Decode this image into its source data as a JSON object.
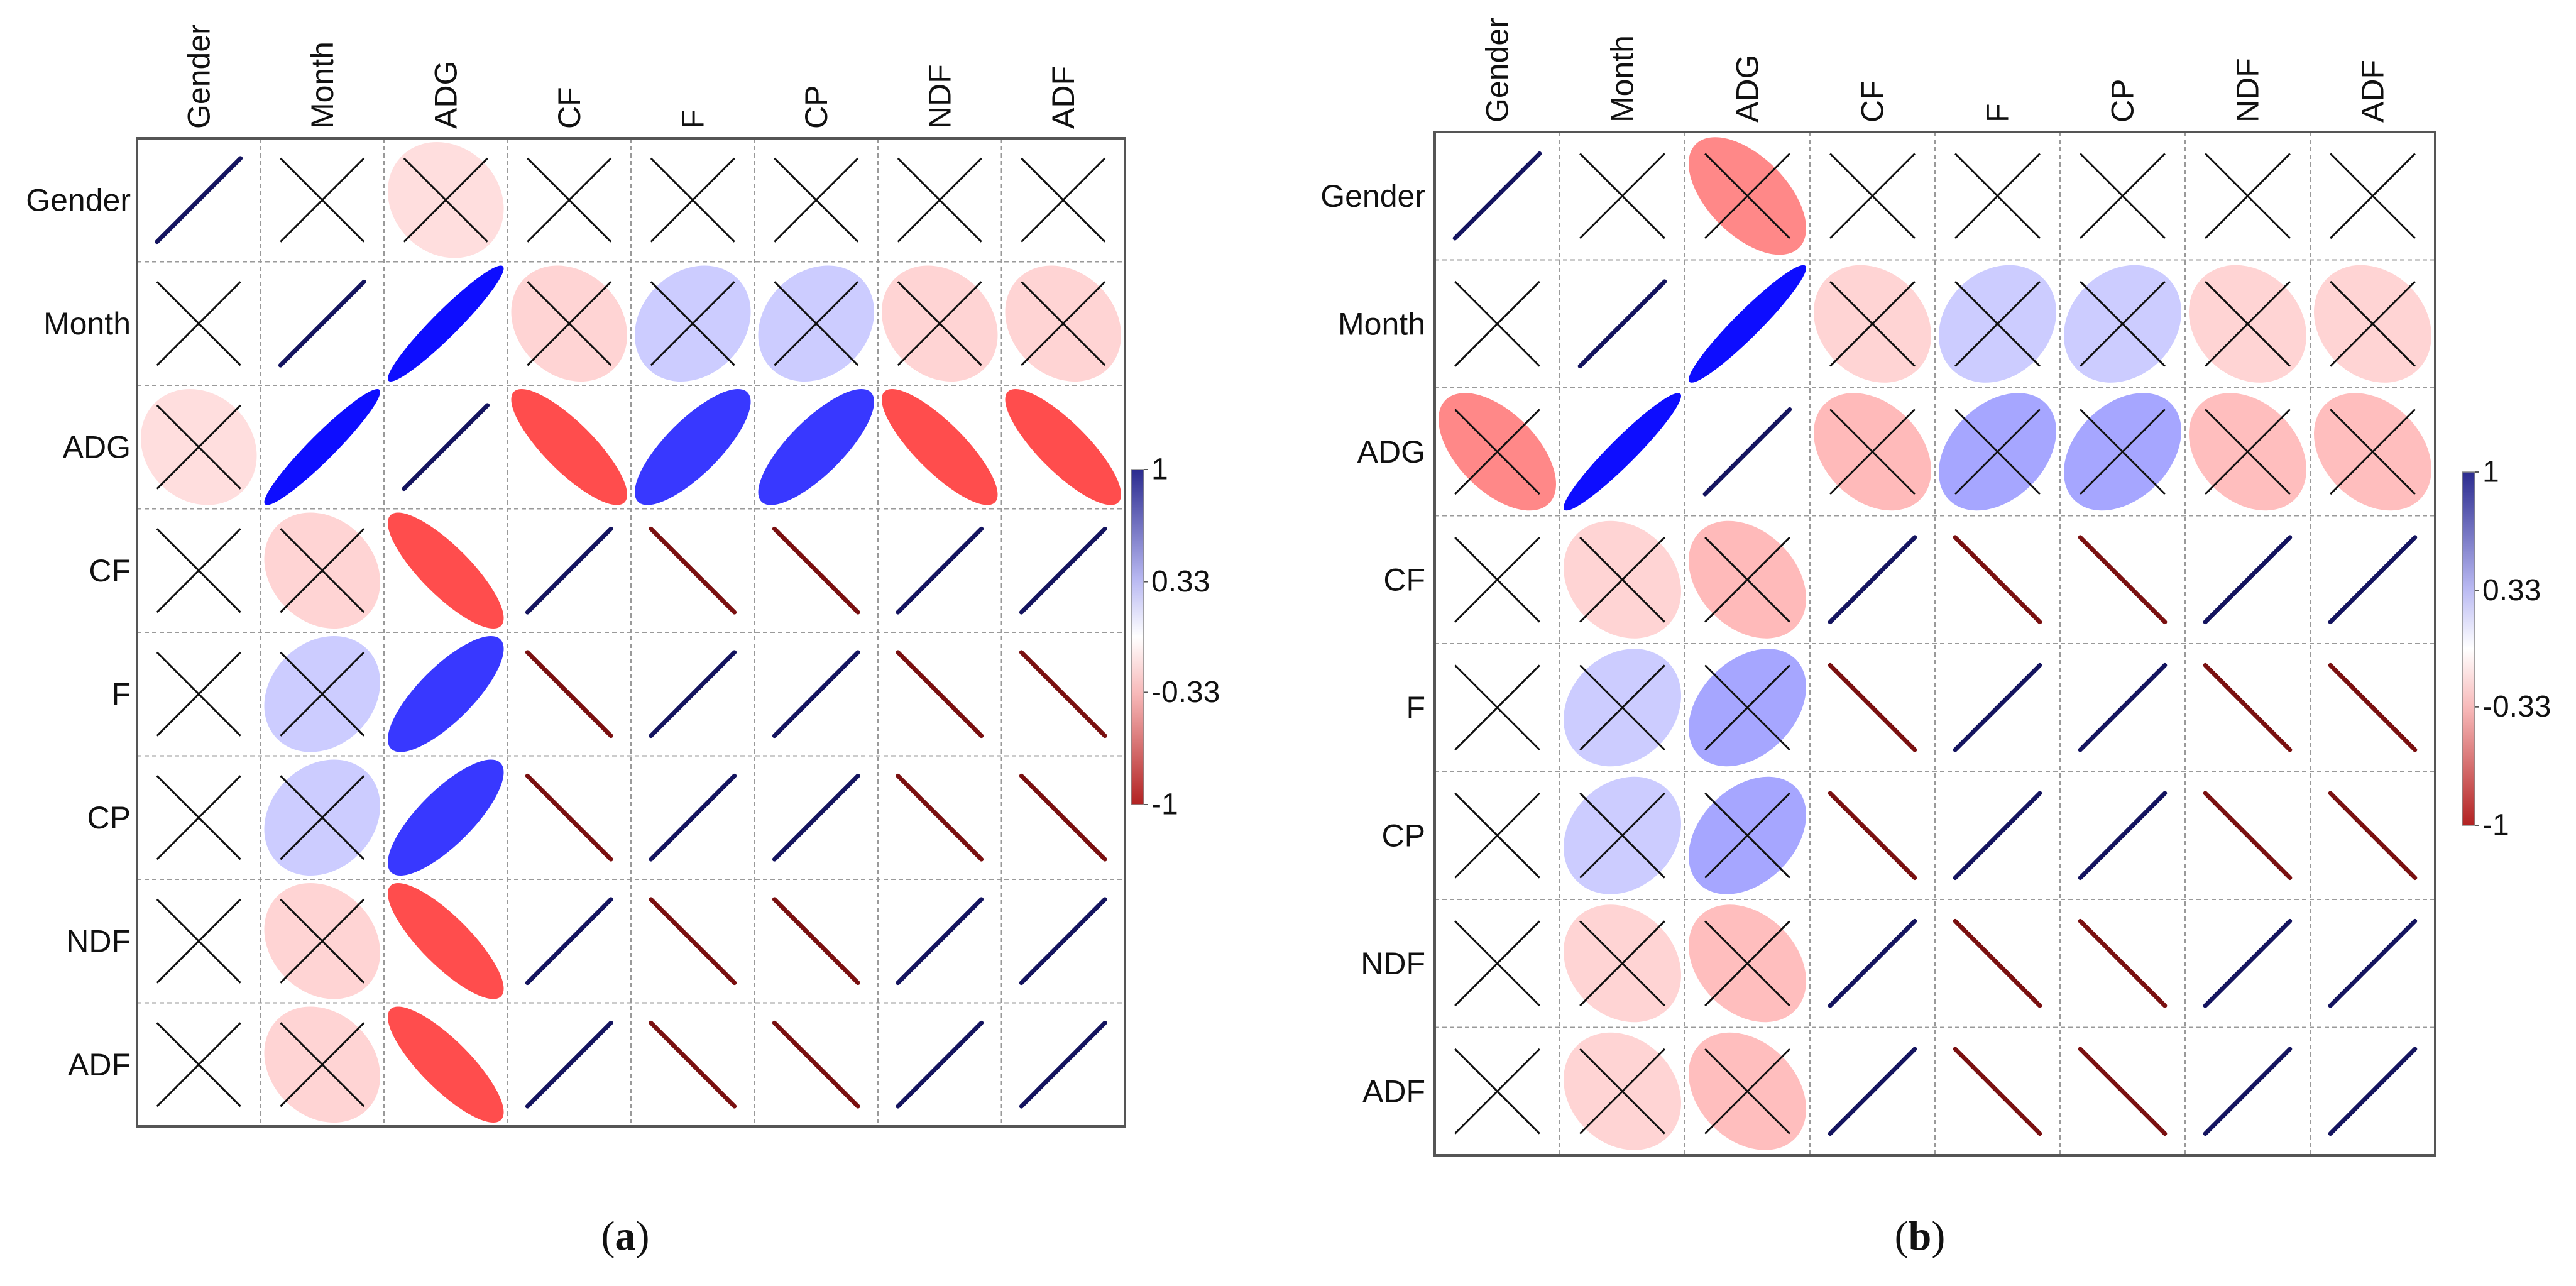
{
  "chart_data": [
    {
      "type": "heatmap",
      "subtype": "correlation-ellipse",
      "variables": [
        "Gender",
        "Month",
        "ADG",
        "CF",
        "F",
        "CP",
        "NDF",
        "ADF"
      ],
      "matrix": [
        [
          1,
          0,
          -0.15,
          0,
          0,
          0,
          0,
          0
        ],
        [
          0,
          1,
          0.95,
          -0.2,
          0.2,
          0.2,
          -0.2,
          -0.2
        ],
        [
          -0.15,
          0.95,
          1,
          -0.82,
          0.78,
          0.78,
          -0.82,
          -0.82
        ],
        [
          0,
          -0.2,
          -0.82,
          1,
          -1,
          -1,
          1,
          1
        ],
        [
          0,
          0.2,
          0.78,
          -1,
          1,
          1,
          -1,
          -1
        ],
        [
          0,
          0.2,
          0.78,
          -1,
          1,
          1,
          -1,
          -1
        ],
        [
          0,
          -0.2,
          -0.82,
          1,
          -1,
          -1,
          1,
          1
        ],
        [
          0,
          -0.2,
          -0.82,
          1,
          -1,
          -1,
          1,
          1
        ]
      ],
      "not_significant": [
        [
          false,
          true,
          true,
          true,
          true,
          true,
          true,
          true
        ],
        [
          true,
          false,
          false,
          true,
          true,
          true,
          true,
          true
        ],
        [
          true,
          false,
          false,
          false,
          false,
          false,
          false,
          false
        ],
        [
          true,
          true,
          false,
          false,
          false,
          false,
          false,
          false
        ],
        [
          true,
          true,
          false,
          false,
          false,
          false,
          false,
          false
        ],
        [
          true,
          true,
          false,
          false,
          false,
          false,
          false,
          false
        ],
        [
          true,
          true,
          false,
          false,
          false,
          false,
          false,
          false
        ],
        [
          true,
          true,
          false,
          false,
          false,
          false,
          false,
          false
        ]
      ],
      "colorbar": {
        "ticks": [
          "1",
          "0.33",
          "-0.33",
          "-1"
        ],
        "tick_values": [
          1,
          0.33,
          -0.33,
          -1
        ],
        "range": [
          -1,
          1
        ]
      },
      "caption": {
        "open": "(",
        "letter": "a",
        "close": ")"
      }
    },
    {
      "type": "heatmap",
      "subtype": "correlation-ellipse",
      "variables": [
        "Gender",
        "Month",
        "ADG",
        "CF",
        "F",
        "CP",
        "NDF",
        "ADF"
      ],
      "matrix": [
        [
          1,
          0,
          -0.55,
          0,
          0,
          0,
          0,
          0
        ],
        [
          0,
          1,
          0.95,
          -0.2,
          0.2,
          0.2,
          -0.2,
          -0.2
        ],
        [
          -0.55,
          0.95,
          1,
          -0.32,
          0.35,
          0.35,
          -0.3,
          -0.3
        ],
        [
          0,
          -0.2,
          -0.32,
          1,
          -1,
          -1,
          1,
          1
        ],
        [
          0,
          0.2,
          0.35,
          -1,
          1,
          1,
          -1,
          -1
        ],
        [
          0,
          0.2,
          0.35,
          -1,
          1,
          1,
          -1,
          -1
        ],
        [
          0,
          -0.2,
          -0.3,
          1,
          -1,
          -1,
          1,
          1
        ],
        [
          0,
          -0.2,
          -0.3,
          1,
          -1,
          -1,
          1,
          1
        ]
      ],
      "not_significant": [
        [
          false,
          true,
          true,
          true,
          true,
          true,
          true,
          true
        ],
        [
          true,
          false,
          false,
          true,
          true,
          true,
          true,
          true
        ],
        [
          true,
          false,
          false,
          true,
          true,
          true,
          true,
          true
        ],
        [
          true,
          true,
          true,
          false,
          false,
          false,
          false,
          false
        ],
        [
          true,
          true,
          true,
          false,
          false,
          false,
          false,
          false
        ],
        [
          true,
          true,
          true,
          false,
          false,
          false,
          false,
          false
        ],
        [
          true,
          true,
          true,
          false,
          false,
          false,
          false,
          false
        ],
        [
          true,
          true,
          true,
          false,
          false,
          false,
          false,
          false
        ]
      ],
      "colorbar": {
        "ticks": [
          "1",
          "0.33",
          "-0.33",
          "-1"
        ],
        "tick_values": [
          1,
          0.33,
          -0.33,
          -1
        ],
        "range": [
          -1,
          1
        ]
      },
      "caption": {
        "open": "(",
        "letter": "b",
        "close": ")"
      }
    }
  ],
  "colors": {
    "positive": "#0000ff",
    "negative": "#ff2626",
    "neutral": "#ffffff",
    "line_positive": "#14145f",
    "line_negative": "#7a1010",
    "colorbar_top": "#2b2b8f",
    "colorbar_mid_pos": "#b9b9f2",
    "colorbar_mid_neg": "#f7b8b8",
    "colorbar_bottom": "#b22222",
    "border": "#555555",
    "grid": "#9a9a9a",
    "cross": "#111111"
  }
}
